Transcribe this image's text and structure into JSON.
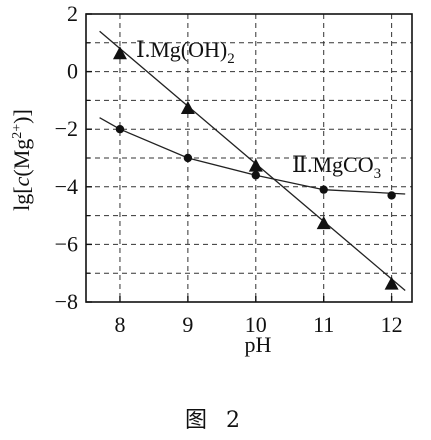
{
  "chart_data": {
    "type": "line",
    "xlabel": "pH",
    "ylabel_parts": {
      "pre": "lg[",
      "c": "c",
      "open": "(Mg",
      "sup": "2+",
      "close": ")]"
    },
    "xlim": [
      7.5,
      12.3
    ],
    "ylim": [
      -8,
      2
    ],
    "xticks": [
      "8",
      "9",
      "10",
      "11",
      "12"
    ],
    "yticks": [
      "2",
      "0",
      "−2",
      "−4",
      "−6",
      "−8"
    ],
    "ytick_values": [
      2,
      0,
      -2,
      -4,
      -6,
      -8
    ],
    "xtick_values": [
      8,
      9,
      10,
      11,
      12
    ],
    "grid": true,
    "series": [
      {
        "name_parts": {
          "roman": "Ⅰ",
          "text": ".Mg(OH)",
          "sub": "2"
        },
        "marker": "triangle",
        "x": [
          8,
          9,
          10,
          11,
          12
        ],
        "y": [
          0.6,
          -1.3,
          -3.3,
          -5.3,
          -7.4
        ],
        "line_x": [
          7.7,
          12.2
        ],
        "line_y": [
          1.4,
          -7.6
        ]
      },
      {
        "name_parts": {
          "roman": "Ⅱ",
          "text": ".MgCO",
          "sub": "3"
        },
        "marker": "circle",
        "x": [
          8,
          9,
          10,
          11,
          12
        ],
        "y": [
          -2.0,
          -3.0,
          -3.6,
          -4.1,
          -4.3
        ],
        "line_x": [
          7.7,
          8,
          9,
          10,
          11,
          12.2
        ],
        "line_y": [
          -1.6,
          -2.0,
          -3.0,
          -3.6,
          -4.1,
          -4.25
        ]
      }
    ]
  },
  "caption": "图 2"
}
